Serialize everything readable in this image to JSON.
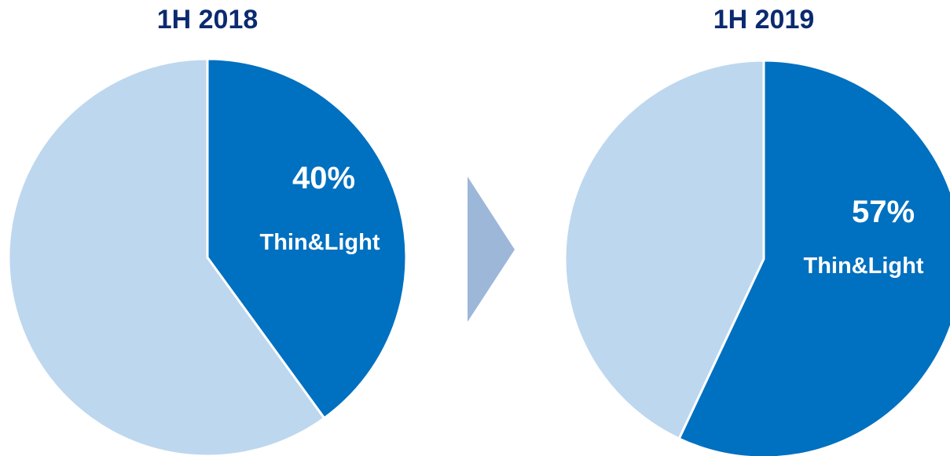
{
  "colors": {
    "primary_slice": "#0070c0",
    "other_slice": "#bdd7ee",
    "title": "#0b2a6f",
    "arrow": "#9db7d9",
    "slice_border": "#ffffff"
  },
  "chart_data": [
    {
      "type": "pie",
      "title": "1H 2018",
      "slices": [
        {
          "label": "Thin&Light",
          "value": 40,
          "value_label": "40%"
        },
        {
          "label": "",
          "value": 60
        }
      ]
    },
    {
      "type": "pie",
      "title": "1H 2019",
      "slices": [
        {
          "label": "Thin&Light",
          "value": 57,
          "value_label": "57%"
        },
        {
          "label": "",
          "value": 43
        }
      ]
    }
  ],
  "connector": {
    "icon": "right-triangle-arrow-icon"
  }
}
